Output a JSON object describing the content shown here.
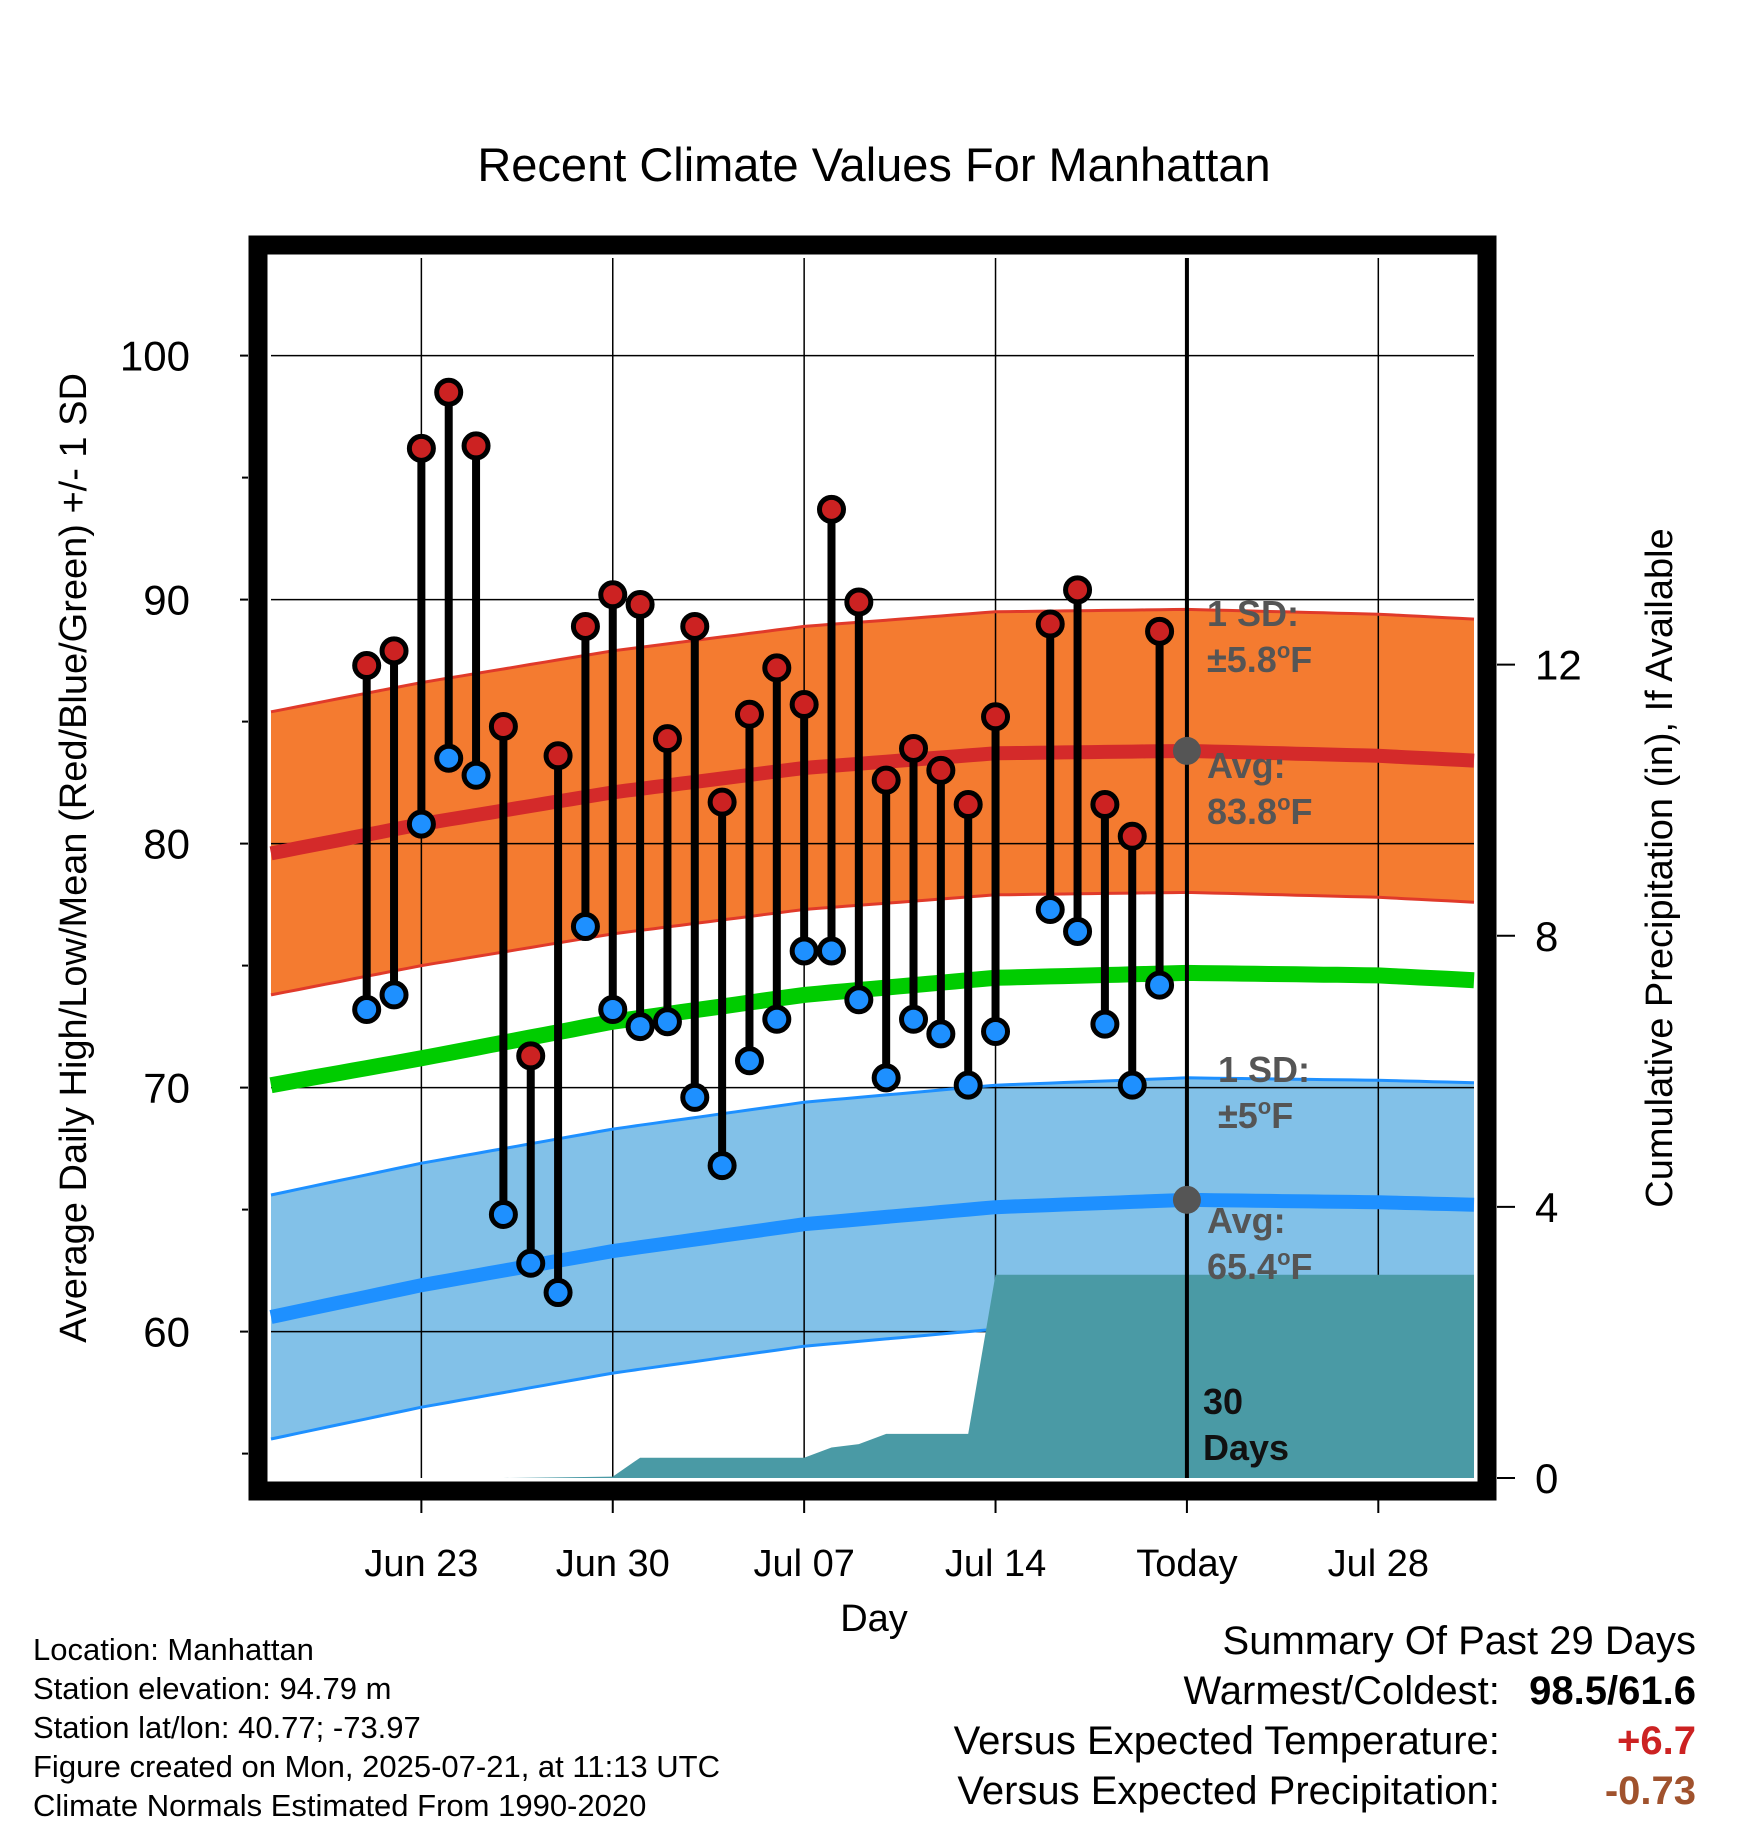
{
  "chart_data": {
    "type": "line",
    "title": "Recent Climate Values For Manhattan",
    "xlabel": "Day",
    "ylabel": "Average Daily High/Low/Mean (Red/Blue/Green) +/- 1 SD",
    "y2label": "Cumulative Precipitation (in), If Available",
    "ylim": [
      54,
      104
    ],
    "y2lim": [
      0,
      18
    ],
    "y_ticks": [
      "60",
      "70",
      "80",
      "90",
      "100"
    ],
    "y2_ticks": [
      "0",
      "4",
      "8",
      "12"
    ],
    "x_range_days": [
      -33.5,
      10.5
    ],
    "x_ticks": [
      {
        "day": -28,
        "label": "Jun 23"
      },
      {
        "day": -21,
        "label": "Jun 30"
      },
      {
        "day": -14,
        "label": "Jul 07"
      },
      {
        "day": -7,
        "label": "Jul 14"
      },
      {
        "day": 0,
        "label": "Today"
      },
      {
        "day": 7,
        "label": "Jul 28"
      }
    ],
    "colors": {
      "high_band": "#f47b30",
      "high_line": "#d42a2a",
      "low_band": "#82c1e8",
      "low_line": "#1e90ff",
      "mean_line": "#00cc00",
      "precip": "#4a9aa5",
      "high_dot": "#cc2222",
      "low_dot": "#1e90ff"
    },
    "normals": {
      "day": [
        -33.5,
        -28,
        -21,
        -14,
        -7,
        0,
        7,
        10.5
      ],
      "high_avg": [
        79.6,
        80.8,
        82.1,
        83.1,
        83.7,
        83.8,
        83.6,
        83.4
      ],
      "low_avg": [
        60.6,
        61.9,
        63.3,
        64.4,
        65.1,
        65.4,
        65.3,
        65.2
      ],
      "mean_avg": [
        70.1,
        71.2,
        72.7,
        73.8,
        74.5,
        74.7,
        74.6,
        74.4
      ]
    },
    "high_sd": 5.8,
    "low_sd": 5,
    "observations": {
      "day": [
        -30,
        -29,
        -28,
        -27,
        -26,
        -25,
        -24,
        -23,
        -22,
        -21,
        -20,
        -19,
        -18,
        -17,
        -16,
        -15,
        -14,
        -13,
        -12,
        -11,
        -10,
        -9,
        -8,
        -7,
        -5,
        -4,
        -3,
        -2,
        -1
      ],
      "high": [
        87.3,
        87.9,
        96.2,
        98.5,
        96.3,
        84.8,
        71.3,
        83.6,
        88.9,
        90.2,
        89.8,
        84.3,
        88.9,
        81.7,
        85.3,
        87.2,
        85.7,
        93.7,
        89.9,
        82.6,
        83.9,
        83.0,
        81.6,
        85.2,
        89.0,
        90.4,
        81.6,
        80.3,
        88.7
      ],
      "low": [
        73.2,
        73.8,
        80.8,
        83.5,
        82.8,
        64.8,
        62.8,
        61.6,
        76.6,
        73.2,
        72.5,
        72.7,
        69.6,
        66.8,
        71.1,
        72.8,
        75.6,
        75.6,
        73.6,
        70.4,
        72.8,
        72.2,
        70.1,
        72.3,
        77.3,
        76.4,
        72.6,
        70.1,
        74.2
      ]
    },
    "precip_cum": {
      "day": [
        -33.5,
        -25,
        -21,
        -20,
        -19,
        -14,
        -13,
        -12,
        -11,
        -10,
        -9,
        -8,
        -7,
        10.5
      ],
      "value": [
        0,
        0,
        0.02,
        0.3,
        0.3,
        0.3,
        0.45,
        0.5,
        0.65,
        0.65,
        0.65,
        0.65,
        3.0,
        3.0
      ]
    },
    "annotations": {
      "high_sd_label": "1 SD:",
      "high_sd_value": "±5.8",
      "high_avg_label": "Avg:",
      "high_avg_value": "83.8",
      "low_sd_label": "1 SD:",
      "low_sd_value": "±5",
      "low_avg_label": "Avg:",
      "low_avg_value": "65.4",
      "degree_unit": "o",
      "unit_f": "F",
      "days_number": "30",
      "days_word": "Days"
    },
    "grid": true
  },
  "station": {
    "location": "Location: Manhattan",
    "elevation": "Station elevation: 94.79 m",
    "latlon": "Station lat/lon: 40.77; -73.97",
    "created": "Figure created on Mon, 2025-07-21, at 11:13 UTC",
    "normals": "Climate Normals Estimated From 1990-2020"
  },
  "summary": {
    "title": "Summary Of Past 29 Days",
    "warm_cold_label": "Warmest/Coldest:",
    "warm_cold_value": "98.5/61.6",
    "temp_label": "Versus Expected Temperature:",
    "temp_value": "+6.7",
    "precip_label": "Versus Expected Precipitation:",
    "precip_value": "-0.73"
  }
}
